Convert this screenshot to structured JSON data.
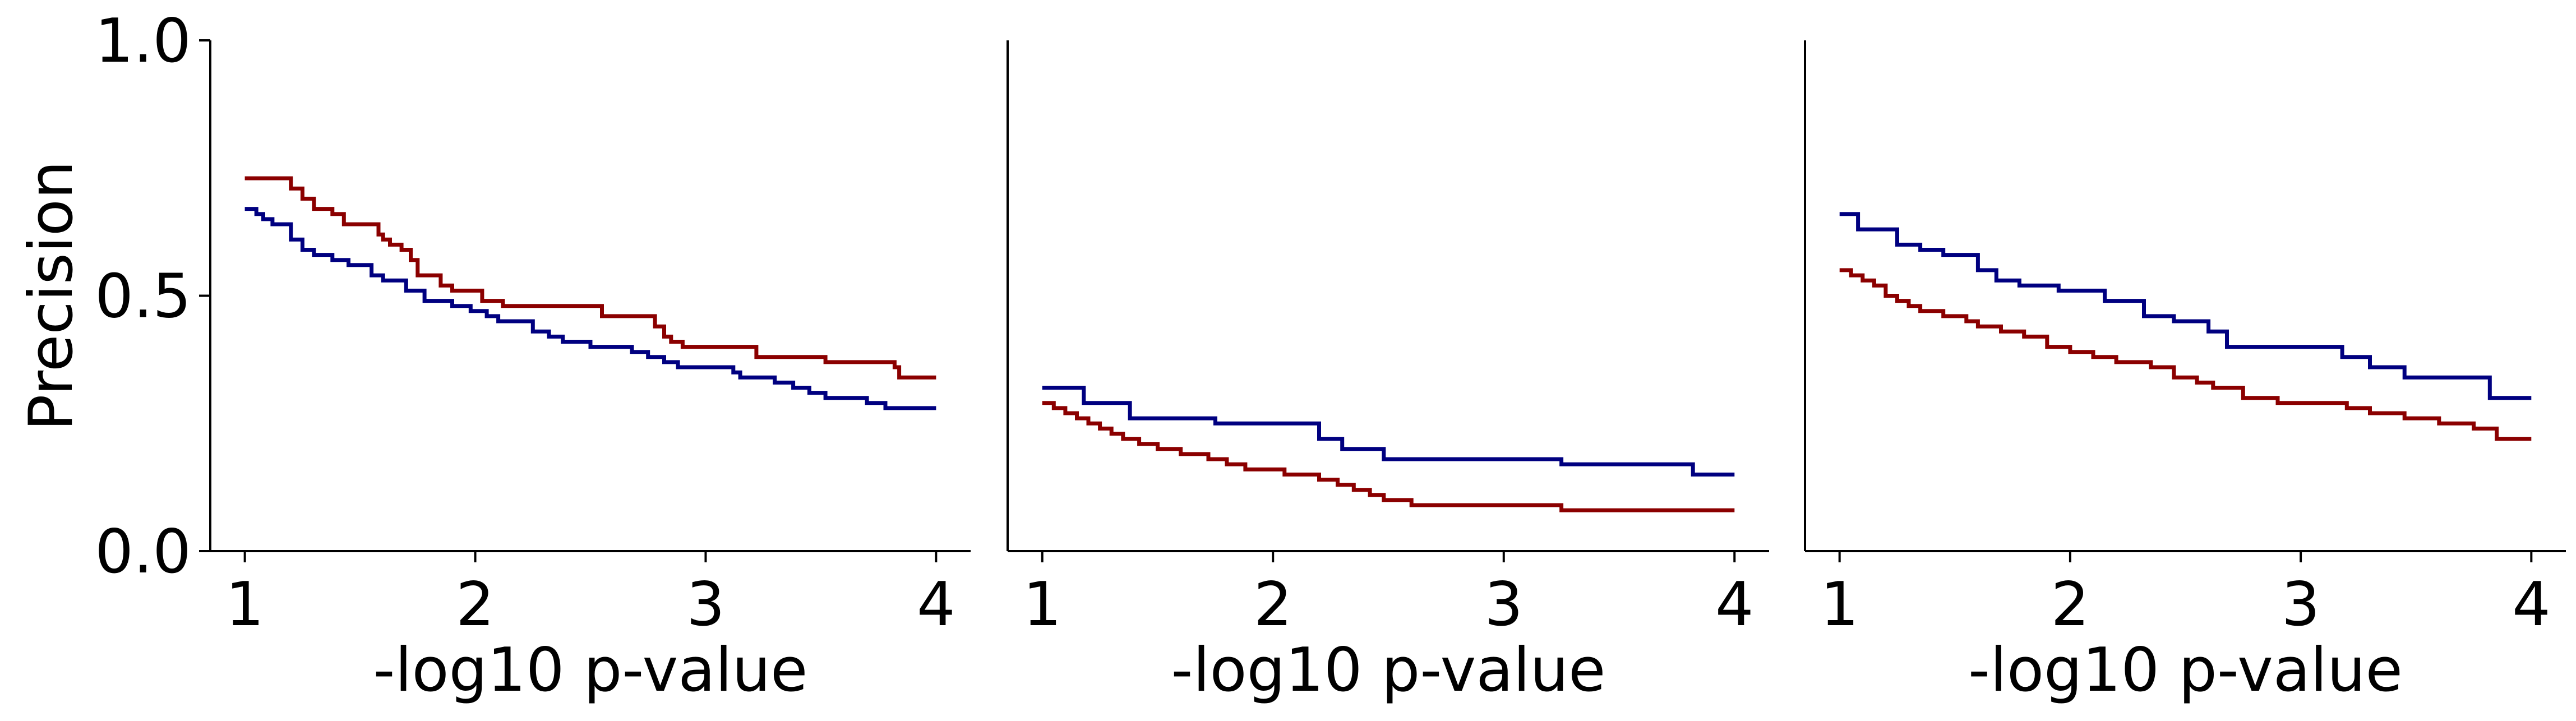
{
  "chart_data": [
    {
      "type": "line",
      "xlabel": "-log10 p-value",
      "ylabel": "Precision",
      "xlim": [
        0.85,
        4.15
      ],
      "ylim": [
        0,
        1
      ],
      "xticks": [
        1,
        2,
        3,
        4
      ],
      "xtick_labels": [
        "1",
        "2",
        "3",
        "4"
      ],
      "yticks": [
        0,
        0.5,
        1
      ],
      "ytick_labels": [
        "0.0",
        "0.5",
        "1.0"
      ],
      "grid": false,
      "step": true,
      "series": [
        {
          "color": "#8b0000",
          "x": [
            1.0,
            1.2,
            1.25,
            1.3,
            1.38,
            1.43,
            1.58,
            1.6,
            1.63,
            1.68,
            1.72,
            1.75,
            1.85,
            1.9,
            2.03,
            2.12,
            2.25,
            2.35,
            2.55,
            2.78,
            2.82,
            2.85,
            2.9,
            3.22,
            3.52,
            3.82,
            3.84,
            4.0
          ],
          "y": [
            0.73,
            0.71,
            0.69,
            0.67,
            0.66,
            0.64,
            0.62,
            0.61,
            0.6,
            0.59,
            0.57,
            0.54,
            0.52,
            0.51,
            0.49,
            0.48,
            0.48,
            0.48,
            0.46,
            0.44,
            0.42,
            0.41,
            0.4,
            0.38,
            0.37,
            0.36,
            0.34,
            0.34
          ]
        },
        {
          "color": "#000080",
          "x": [
            1.0,
            1.05,
            1.08,
            1.12,
            1.2,
            1.25,
            1.3,
            1.38,
            1.45,
            1.55,
            1.6,
            1.7,
            1.78,
            1.9,
            1.98,
            2.05,
            2.1,
            2.25,
            2.32,
            2.38,
            2.5,
            2.55,
            2.68,
            2.75,
            2.82,
            2.88,
            3.12,
            3.15,
            3.2,
            3.3,
            3.38,
            3.45,
            3.52,
            3.7,
            3.78,
            4.0
          ],
          "y": [
            0.67,
            0.66,
            0.65,
            0.64,
            0.61,
            0.59,
            0.58,
            0.57,
            0.56,
            0.54,
            0.53,
            0.51,
            0.49,
            0.48,
            0.47,
            0.46,
            0.45,
            0.43,
            0.42,
            0.41,
            0.4,
            0.4,
            0.39,
            0.38,
            0.37,
            0.36,
            0.35,
            0.34,
            0.34,
            0.33,
            0.32,
            0.31,
            0.3,
            0.29,
            0.28,
            0.28
          ]
        }
      ]
    },
    {
      "type": "line",
      "xlabel": "-log10 p-value",
      "ylabel": "",
      "xlim": [
        0.85,
        4.15
      ],
      "ylim": [
        0,
        1
      ],
      "xticks": [
        1,
        2,
        3,
        4
      ],
      "xtick_labels": [
        "1",
        "2",
        "3",
        "4"
      ],
      "yticks": [],
      "ytick_labels": [],
      "grid": false,
      "step": true,
      "series": [
        {
          "color": "#8b0000",
          "x": [
            1.0,
            1.05,
            1.1,
            1.15,
            1.2,
            1.25,
            1.3,
            1.35,
            1.42,
            1.5,
            1.6,
            1.72,
            1.8,
            1.88,
            2.05,
            2.2,
            2.28,
            2.35,
            2.42,
            2.48,
            2.6,
            2.82,
            2.98,
            3.25,
            3.8,
            4.0
          ],
          "y": [
            0.29,
            0.28,
            0.27,
            0.26,
            0.25,
            0.24,
            0.23,
            0.22,
            0.21,
            0.2,
            0.19,
            0.18,
            0.17,
            0.16,
            0.15,
            0.14,
            0.13,
            0.12,
            0.11,
            0.1,
            0.09,
            0.09,
            0.09,
            0.08,
            0.08,
            0.08
          ]
        },
        {
          "color": "#000080",
          "x": [
            1.0,
            1.18,
            1.38,
            1.75,
            2.2,
            2.3,
            2.48,
            3.25,
            3.82,
            4.0
          ],
          "y": [
            0.32,
            0.29,
            0.26,
            0.25,
            0.22,
            0.2,
            0.18,
            0.17,
            0.15,
            0.15
          ]
        }
      ]
    },
    {
      "type": "line",
      "xlabel": "-log10 p-value",
      "ylabel": "",
      "xlim": [
        0.85,
        4.15
      ],
      "ylim": [
        0,
        1
      ],
      "xticks": [
        1,
        2,
        3,
        4
      ],
      "xtick_labels": [
        "1",
        "2",
        "3",
        "4"
      ],
      "yticks": [],
      "ytick_labels": [],
      "grid": false,
      "step": true,
      "series": [
        {
          "color": "#8b0000",
          "x": [
            1.0,
            1.05,
            1.1,
            1.15,
            1.2,
            1.25,
            1.3,
            1.35,
            1.45,
            1.55,
            1.6,
            1.7,
            1.8,
            1.9,
            2.0,
            2.1,
            2.2,
            2.35,
            2.45,
            2.55,
            2.62,
            2.75,
            2.9,
            3.05,
            3.2,
            3.3,
            3.45,
            3.6,
            3.75,
            3.85,
            4.0
          ],
          "y": [
            0.55,
            0.54,
            0.53,
            0.52,
            0.5,
            0.49,
            0.48,
            0.47,
            0.46,
            0.45,
            0.44,
            0.43,
            0.42,
            0.4,
            0.39,
            0.38,
            0.37,
            0.36,
            0.34,
            0.33,
            0.32,
            0.3,
            0.29,
            0.29,
            0.28,
            0.27,
            0.26,
            0.25,
            0.24,
            0.22,
            0.22
          ]
        },
        {
          "color": "#000080",
          "x": [
            1.0,
            1.08,
            1.25,
            1.35,
            1.45,
            1.6,
            1.68,
            1.78,
            1.95,
            2.15,
            2.32,
            2.45,
            2.6,
            2.68,
            3.1,
            3.18,
            3.3,
            3.45,
            3.6,
            3.82,
            4.0
          ],
          "y": [
            0.66,
            0.63,
            0.6,
            0.59,
            0.58,
            0.55,
            0.53,
            0.52,
            0.51,
            0.49,
            0.46,
            0.45,
            0.43,
            0.4,
            0.4,
            0.38,
            0.36,
            0.34,
            0.34,
            0.3,
            0.3
          ]
        }
      ]
    }
  ]
}
